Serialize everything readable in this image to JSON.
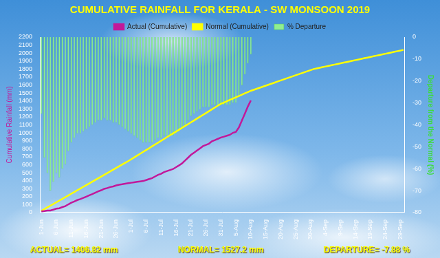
{
  "chart_data": {
    "type": "bar",
    "title": "CUMULATIVE RAINFALL FOR KERALA - SW MONSOON 2019",
    "y_label": "Cumulative Rainfall (mm)",
    "y2_label": "Departure from the Normal (%)",
    "annotations": [
      "ACTUAL= 1406.82 mm",
      "NORMAL= 1527.2 mm",
      "DEPARTURE= -7.88 %"
    ],
    "categories": [
      "1-Jun",
      null,
      null,
      null,
      null,
      "6-Jun",
      null,
      null,
      null,
      null,
      "11-Jun",
      null,
      null,
      null,
      null,
      "16-Jun",
      null,
      null,
      null,
      null,
      "21-Jun",
      null,
      null,
      null,
      null,
      "26-Jun",
      null,
      null,
      null,
      null,
      "1-Jul",
      null,
      null,
      null,
      null,
      "6-Jul",
      null,
      null,
      null,
      null,
      "11-Jul",
      null,
      null,
      null,
      null,
      "16-Jul",
      null,
      null,
      null,
      null,
      "21-Jul",
      null,
      null,
      null,
      null,
      "26-Jul",
      null,
      null,
      null,
      null,
      "31-Jul",
      null,
      null,
      null,
      null,
      "5-Aug",
      null,
      null,
      null,
      null,
      "10-Aug",
      null,
      null,
      null,
      null,
      "15-Aug",
      null,
      null,
      null,
      null,
      "20-Aug",
      null,
      null,
      null,
      null,
      "25-Aug",
      null,
      null,
      null,
      null,
      "30-Aug",
      null,
      null,
      null,
      null,
      "4-Sep",
      null,
      null,
      null,
      null,
      "9-Sep",
      null,
      null,
      null,
      null,
      "14-Sep",
      null,
      null,
      null,
      null,
      "19-Sep",
      null,
      null,
      null,
      null,
      "24-Sep",
      null,
      null,
      null,
      null,
      "29-Sep",
      null
    ],
    "series": [
      {
        "name": "% Departure",
        "type": "bar",
        "axis": "y2",
        "color": "#90ee90",
        "values": [
          -35,
          -55,
          -62,
          -70,
          -66,
          -62,
          -64,
          -60,
          -58,
          -52,
          -48,
          -46,
          -44,
          -44,
          -43,
          -42,
          -41,
          -40,
          -39,
          -38,
          -38,
          -37,
          -38,
          -38,
          -39,
          -39,
          -40,
          -41,
          -42,
          -43,
          -44,
          -45,
          -46,
          -47,
          -48,
          -48,
          -48,
          -48,
          -47,
          -46,
          -46,
          -45,
          -45,
          -45,
          -45,
          -44,
          -43,
          -42,
          -40,
          -38,
          -36,
          -35,
          -34,
          -33,
          -32,
          -32,
          -32,
          -31,
          -31,
          -31,
          -31,
          -31,
          -31,
          -31,
          -30,
          -30,
          -27,
          -22,
          -17,
          -12,
          -7.88,
          null,
          null,
          null,
          null,
          null,
          null,
          null,
          null,
          null,
          null,
          null,
          null,
          null,
          null,
          null,
          null,
          null,
          null,
          null,
          null,
          null,
          null,
          null,
          null,
          null,
          null,
          null,
          null,
          null,
          null,
          null,
          null,
          null,
          null,
          null,
          null,
          null,
          null,
          null,
          null,
          null,
          null,
          null,
          null,
          null,
          null,
          null,
          null,
          null,
          null,
          null
        ]
      },
      {
        "name": "Actual (Cumulative)",
        "type": "line",
        "axis": "y",
        "color": "#c2189a",
        "marker": "none",
        "line_style": "solid",
        "values": [
          14,
          19,
          25,
          26,
          37,
          49,
          54,
          69,
          81,
          103,
          123,
          139,
          157,
          169,
          184,
          200,
          216,
          232,
          249,
          267,
          280,
          298,
          307,
          320,
          328,
          341,
          349,
          355,
          362,
          368,
          374,
          380,
          386,
          391,
          396,
          408,
          420,
          432,
          453,
          474,
          486,
          508,
          521,
          534,
          546,
          569,
          592,
          617,
          652,
          688,
          724,
          751,
          778,
          805,
          833,
          849,
          864,
          894,
          909,
          925,
          941,
          952,
          964,
          975,
          1000,
          1012,
          1067,
          1153,
          1241,
          1330,
          1406.82,
          null,
          null,
          null,
          null,
          null,
          null,
          null,
          null,
          null,
          null,
          null,
          null,
          null,
          null,
          null,
          null,
          null,
          null,
          null,
          null,
          null,
          null,
          null,
          null,
          null,
          null,
          null,
          null,
          null,
          null,
          null,
          null,
          null,
          null,
          null,
          null,
          null,
          null,
          null,
          null,
          null,
          null,
          null,
          null,
          null,
          null,
          null,
          null,
          null,
          null,
          null
        ]
      },
      {
        "name": "Normal (Cumulative)",
        "type": "line",
        "axis": "y",
        "color": "#ffff00",
        "marker": "none",
        "line_style": "solid",
        "values": [
          22,
          43,
          65,
          86,
          108,
          129,
          151,
          172,
          194,
          215,
          237,
          258,
          280,
          301,
          323,
          344,
          366,
          387,
          409,
          430,
          452,
          473,
          495,
          516,
          538,
          559,
          581,
          602,
          624,
          645,
          668,
          691,
          715,
          738,
          761,
          784,
          807,
          831,
          854,
          877,
          900,
          923,
          947,
          970,
          993,
          1016,
          1039,
          1063,
          1086,
          1109,
          1132,
          1155,
          1179,
          1202,
          1225,
          1248,
          1271,
          1295,
          1318,
          1341,
          1364,
          1380,
          1397,
          1413,
          1429,
          1446,
          1462,
          1478,
          1495,
          1511,
          1527.2,
          1540,
          1553,
          1566,
          1579,
          1592,
          1605,
          1618,
          1631,
          1644,
          1657,
          1670,
          1683,
          1696,
          1709,
          1722,
          1735,
          1748,
          1761,
          1774,
          1787,
          1800,
          1808,
          1816,
          1824,
          1832,
          1840,
          1848,
          1856,
          1864,
          1872,
          1880,
          1888,
          1896,
          1904,
          1912,
          1920,
          1928,
          1936,
          1944,
          1952,
          1960,
          1968,
          1976,
          1984,
          1992,
          2000,
          2008,
          2016,
          2024,
          2032,
          2040
        ]
      }
    ],
    "ylim": [
      0,
      2200
    ],
    "yticks": [
      0,
      100,
      200,
      300,
      400,
      500,
      600,
      700,
      800,
      900,
      1000,
      1100,
      1200,
      1300,
      1400,
      1500,
      1600,
      1700,
      1800,
      1900,
      2000,
      2100,
      2200
    ],
    "y2lim": [
      -80,
      0
    ],
    "y2ticks": [
      -80,
      -70,
      -60,
      -50,
      -40,
      -30,
      -20,
      -10,
      0
    ],
    "grid": false,
    "legend": "top"
  }
}
